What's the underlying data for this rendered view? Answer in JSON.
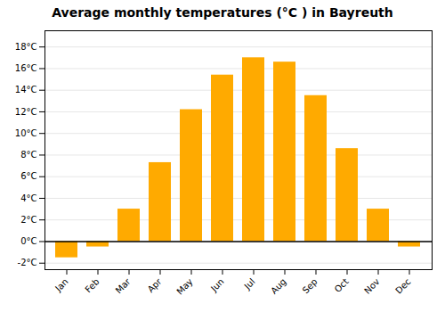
{
  "chart_data": {
    "type": "bar",
    "title": "Average monthly temperatures (°C ) in Bayreuth",
    "categories": [
      "Jan",
      "Feb",
      "Mar",
      "Apr",
      "May",
      "Jun",
      "Jul",
      "Aug",
      "Sep",
      "Oct",
      "Nov",
      "Dec"
    ],
    "values": [
      -1.5,
      -0.5,
      3.0,
      7.3,
      12.2,
      15.4,
      17.0,
      16.6,
      13.5,
      8.6,
      3.0,
      -0.5
    ],
    "color": "#FFAA00",
    "ylim": [
      -2.6,
      19.5
    ],
    "yticks": [
      {
        "value": -2,
        "label": "-2°C"
      },
      {
        "value": 0,
        "label": "0°C"
      },
      {
        "value": 2,
        "label": "2°C"
      },
      {
        "value": 4,
        "label": "4°C"
      },
      {
        "value": 6,
        "label": "6°C"
      },
      {
        "value": 8,
        "label": "8°C"
      },
      {
        "value": 10,
        "label": "10°C"
      },
      {
        "value": 12,
        "label": "12°C"
      },
      {
        "value": 14,
        "label": "14°C"
      },
      {
        "value": 16,
        "label": "16°C"
      },
      {
        "value": 18,
        "label": "18°C"
      }
    ],
    "grid": true
  }
}
